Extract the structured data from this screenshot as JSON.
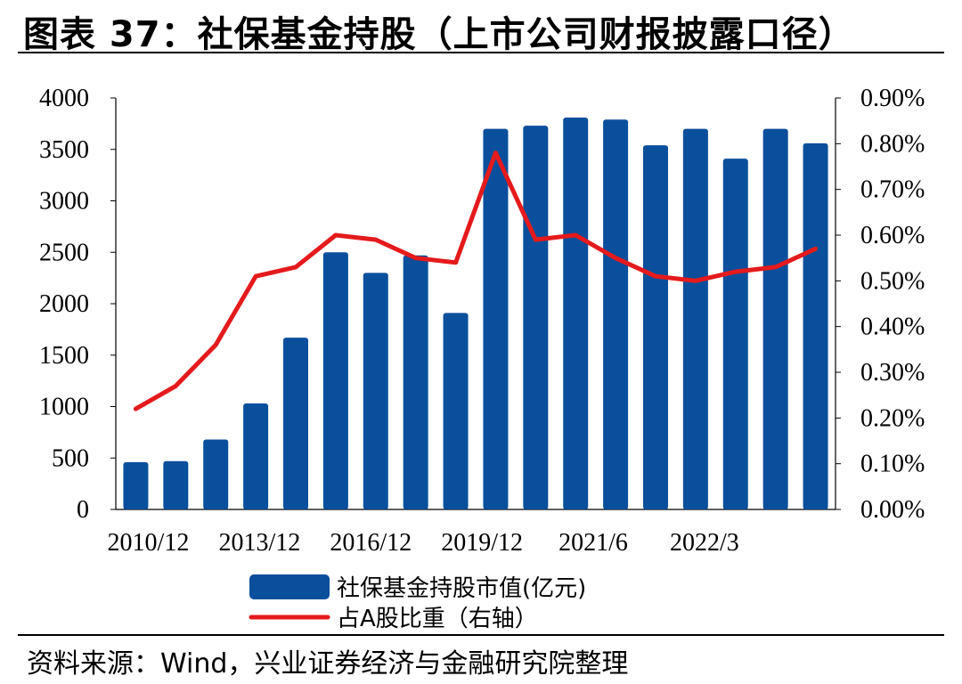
{
  "header": {
    "title": "图表 37：社保基金持股（上市公司财报披露口径）"
  },
  "footer": {
    "source": "资料来源：Wind，兴业证券经济与金融研究院整理"
  },
  "chart_data": {
    "type": "bar",
    "title": "图表 37：社保基金持股（上市公司财报披露口径）",
    "x_tick_labels": [
      "2010/12",
      "2013/12",
      "2016/12",
      "2019/12",
      "2021/6",
      "2022/3"
    ],
    "bar_count": 18,
    "series": [
      {
        "name": "社保基金持股市值(亿元)",
        "type": "bar",
        "axis": "left",
        "color": "#0a4f9c",
        "values": [
          460,
          470,
          680,
          1030,
          1670,
          2500,
          2300,
          2470,
          1910,
          3700,
          3730,
          3810,
          3790,
          3540,
          3700,
          3410,
          3700,
          3560
        ]
      },
      {
        "name": "占A股比重（右轴）",
        "type": "line",
        "axis": "right",
        "color": "#e41a1c",
        "values": [
          0.22,
          0.27,
          0.36,
          0.51,
          0.53,
          0.6,
          0.59,
          0.55,
          0.54,
          0.78,
          0.59,
          0.6,
          0.55,
          0.51,
          0.5,
          0.52,
          0.53,
          0.57
        ]
      }
    ],
    "y_left": {
      "min": 0,
      "max": 4000,
      "ticks": [
        "0",
        "500",
        "1000",
        "1500",
        "2000",
        "2500",
        "3000",
        "3500",
        "4000"
      ]
    },
    "y_right": {
      "min": 0,
      "max": 0.9,
      "ticks": [
        "0.00%",
        "0.10%",
        "0.20%",
        "0.30%",
        "0.40%",
        "0.50%",
        "0.60%",
        "0.70%",
        "0.80%",
        "0.90%"
      ]
    },
    "legend_position": "bottom"
  }
}
